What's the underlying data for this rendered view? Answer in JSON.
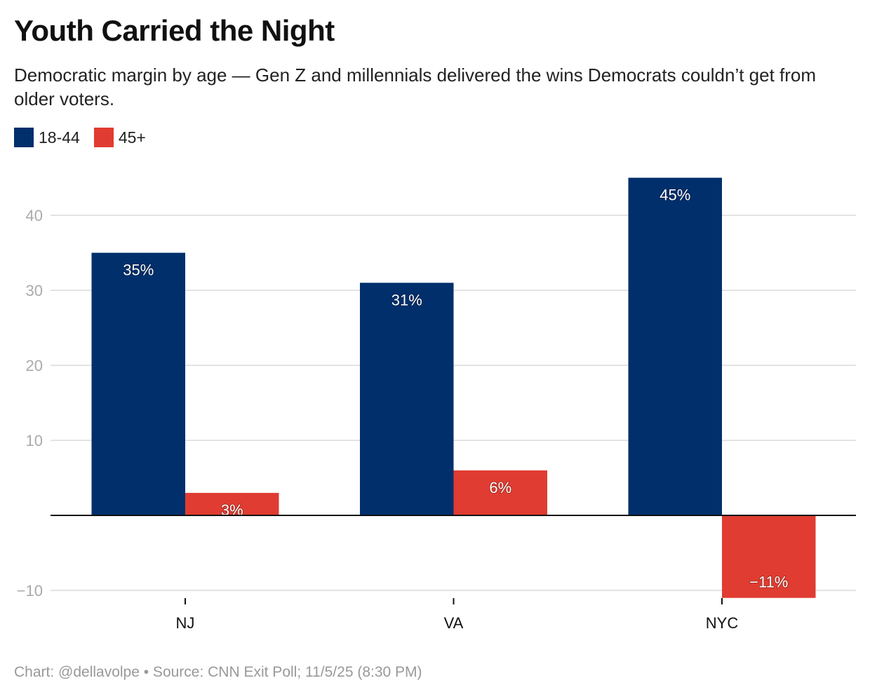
{
  "chart_data": {
    "type": "bar",
    "title": "Youth Carried the Night",
    "subtitle": "Democratic margin by age — Gen Z and millennials delivered the wins Democrats couldn’t get from older voters.",
    "categories": [
      "NJ",
      "VA",
      "NYC"
    ],
    "series": [
      {
        "name": "18-44",
        "color": "#002f6c",
        "values": [
          35,
          31,
          45
        ],
        "labels": [
          "35%",
          "31%",
          "45%"
        ]
      },
      {
        "name": "45+",
        "color": "#e03c31",
        "values": [
          3,
          6,
          -11
        ],
        "labels": [
          "3%",
          "6%",
          "−11%"
        ]
      }
    ],
    "yticks": [
      -10,
      10,
      20,
      30,
      40
    ],
    "ytick_labels": [
      "−10",
      "10",
      "20",
      "30",
      "40"
    ],
    "ylim": [
      -11.5,
      45
    ],
    "grid": true,
    "legend": "top-left",
    "xlabel": "",
    "ylabel": ""
  },
  "footer": "Chart: @dellavolpe • Source: CNN Exit Poll; 11/5/25 (8:30 PM)"
}
